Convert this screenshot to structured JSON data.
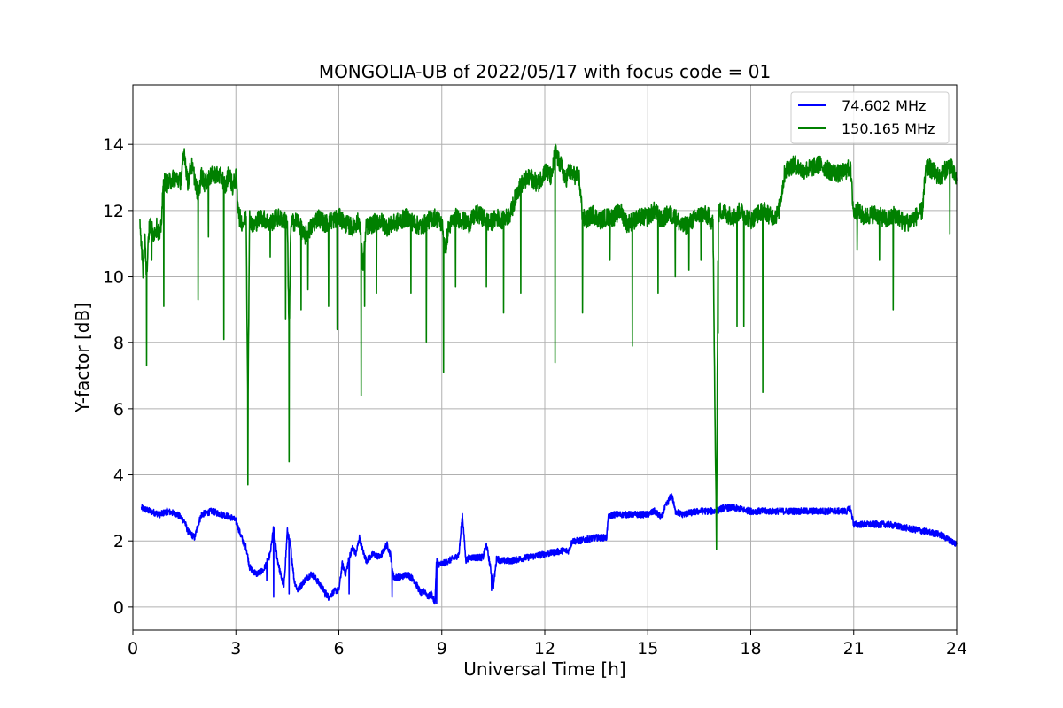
{
  "chart_data": {
    "type": "line",
    "title": "MONGOLIA-UB of 2022/05/17 with focus code = 01",
    "xlabel": "Universal Time [h]",
    "ylabel": "Y-factor [dB]",
    "xlim": [
      0,
      24
    ],
    "ylim": [
      -0.7,
      15.8
    ],
    "xticks": [
      0,
      3,
      6,
      9,
      12,
      15,
      18,
      21,
      24
    ],
    "yticks": [
      0,
      2,
      4,
      6,
      8,
      10,
      12,
      14
    ],
    "grid": true,
    "legend_position": "top-right",
    "series": [
      {
        "name": " 74.602 MHz",
        "color": "#0000ff",
        "x": [
          0.25,
          0.5,
          0.8,
          1.0,
          1.3,
          1.5,
          1.6,
          1.7,
          1.8,
          1.9,
          2.0,
          2.3,
          2.6,
          2.9,
          3.0,
          3.1,
          3.2,
          3.3,
          3.4,
          3.6,
          3.8,
          4.0,
          4.1,
          4.2,
          4.3,
          4.4,
          4.5,
          4.6,
          4.7,
          4.8,
          5.0,
          5.2,
          5.3,
          5.5,
          5.7,
          5.8,
          5.9,
          6.0,
          6.1,
          6.2,
          6.3,
          6.4,
          6.5,
          6.6,
          6.7,
          6.8,
          7.0,
          7.2,
          7.4,
          7.5,
          7.6,
          7.8,
          8.0,
          8.2,
          8.3,
          8.4,
          8.5,
          8.6,
          8.7,
          8.8,
          8.85,
          8.9,
          9.0,
          9.2,
          9.4,
          9.5,
          9.6,
          9.7,
          9.8,
          10.0,
          10.2,
          10.3,
          10.4,
          10.5,
          10.6,
          10.7,
          11.0,
          11.5,
          12.0,
          12.5,
          12.7,
          12.8,
          13.0,
          13.5,
          13.8,
          13.85,
          14.0,
          14.5,
          15.0,
          15.2,
          15.4,
          15.5,
          15.6,
          15.7,
          15.8,
          16.0,
          16.5,
          17.0,
          17.2,
          17.5,
          18.0,
          18.5,
          19.0,
          19.5,
          20.0,
          20.5,
          20.8,
          20.9,
          21.0,
          21.5,
          22.0,
          22.5,
          23.0,
          23.5,
          24.0
        ],
        "y": [
          3.0,
          2.9,
          2.8,
          2.9,
          2.8,
          2.6,
          2.3,
          2.2,
          2.1,
          2.5,
          2.8,
          2.9,
          2.8,
          2.7,
          2.6,
          2.3,
          2.0,
          1.8,
          1.2,
          1.0,
          1.1,
          1.6,
          2.4,
          1.5,
          1.0,
          0.6,
          2.3,
          1.8,
          0.8,
          0.5,
          0.8,
          1.0,
          0.9,
          0.6,
          0.3,
          0.4,
          0.5,
          0.5,
          1.3,
          1.0,
          1.5,
          1.8,
          1.6,
          2.1,
          1.7,
          1.4,
          1.6,
          1.5,
          1.9,
          1.6,
          0.9,
          0.9,
          1.0,
          0.8,
          0.6,
          0.4,
          0.5,
          0.3,
          0.4,
          0.1,
          1.5,
          1.3,
          1.3,
          1.4,
          1.5,
          1.6,
          2.8,
          1.4,
          1.5,
          1.5,
          1.5,
          1.9,
          1.3,
          0.6,
          1.5,
          1.4,
          1.4,
          1.5,
          1.6,
          1.7,
          1.7,
          2.0,
          2.0,
          2.1,
          2.1,
          2.7,
          2.8,
          2.8,
          2.8,
          2.9,
          2.7,
          3.0,
          3.2,
          3.4,
          2.9,
          2.8,
          2.9,
          2.9,
          3.0,
          3.0,
          2.9,
          2.9,
          2.9,
          2.9,
          2.9,
          2.9,
          2.9,
          3.0,
          2.5,
          2.5,
          2.5,
          2.4,
          2.3,
          2.2,
          1.9
        ]
      },
      {
        "name": "150.165 MHz",
        "color": "#008000",
        "x": [
          0.2,
          0.25,
          0.3,
          0.35,
          0.4,
          0.45,
          0.5,
          0.6,
          0.7,
          0.8,
          0.9,
          1.0,
          1.2,
          1.4,
          1.5,
          1.6,
          1.7,
          1.8,
          1.9,
          2.0,
          2.1,
          2.2,
          2.4,
          2.6,
          2.7,
          2.8,
          2.9,
          3.0,
          3.1,
          3.2,
          3.3,
          3.35,
          3.4,
          3.5,
          3.7,
          3.9,
          4.0,
          4.2,
          4.4,
          4.5,
          4.55,
          4.6,
          4.8,
          5.0,
          5.2,
          5.4,
          5.6,
          5.8,
          6.0,
          6.2,
          6.4,
          6.6,
          6.7,
          6.8,
          7.0,
          7.2,
          7.4,
          7.6,
          7.8,
          8.0,
          8.2,
          8.4,
          8.6,
          8.8,
          9.0,
          9.1,
          9.2,
          9.4,
          9.6,
          9.8,
          10.0,
          10.2,
          10.4,
          10.6,
          10.8,
          11.0,
          11.2,
          11.4,
          11.6,
          11.8,
          12.0,
          12.2,
          12.3,
          12.4,
          12.5,
          12.6,
          12.7,
          12.8,
          13.0,
          13.1,
          13.2,
          13.4,
          13.6,
          13.8,
          14.0,
          14.2,
          14.4,
          14.6,
          14.8,
          15.0,
          15.2,
          15.4,
          15.6,
          15.8,
          16.0,
          16.2,
          16.4,
          16.6,
          16.8,
          16.9,
          16.95,
          17.0,
          17.05,
          17.1,
          17.3,
          17.5,
          17.7,
          17.9,
          18.0,
          18.2,
          18.4,
          18.6,
          18.8,
          19.0,
          19.1,
          19.3,
          19.5,
          19.8,
          20.0,
          20.3,
          20.6,
          20.9,
          21.0,
          21.1,
          21.3,
          21.6,
          22.0,
          22.2,
          22.5,
          22.8,
          23.0,
          23.1,
          23.2,
          23.5,
          23.8,
          24.0
        ],
        "y": [
          11.8,
          11.0,
          10.0,
          11.5,
          9.9,
          11.2,
          11.6,
          11.3,
          11.5,
          11.2,
          12.9,
          12.8,
          13.0,
          12.9,
          13.8,
          12.8,
          13.4,
          13.0,
          12.4,
          13.1,
          12.8,
          13.0,
          13.1,
          13.0,
          12.7,
          13.2,
          12.7,
          13.0,
          11.8,
          11.6,
          11.8,
          6.0,
          11.8,
          11.5,
          11.8,
          11.7,
          11.6,
          11.8,
          11.7,
          11.7,
          8.0,
          11.6,
          11.7,
          11.2,
          11.5,
          11.8,
          11.6,
          11.7,
          11.8,
          11.6,
          11.5,
          11.7,
          10.3,
          11.5,
          11.6,
          11.7,
          11.5,
          11.6,
          11.7,
          11.8,
          11.6,
          11.5,
          11.7,
          11.8,
          11.6,
          10.8,
          11.5,
          11.8,
          11.7,
          11.6,
          11.9,
          11.8,
          11.6,
          11.8,
          11.7,
          11.9,
          12.6,
          12.9,
          13.0,
          12.8,
          13.2,
          13.0,
          13.8,
          13.5,
          13.3,
          12.9,
          13.2,
          13.1,
          13.0,
          11.8,
          11.7,
          11.9,
          11.7,
          11.8,
          11.8,
          12.0,
          11.6,
          11.7,
          11.8,
          11.8,
          12.0,
          11.7,
          11.9,
          11.8,
          11.5,
          11.6,
          11.8,
          11.9,
          11.8,
          11.6,
          6.5,
          2.0,
          11.8,
          12.0,
          11.9,
          11.8,
          12.0,
          11.8,
          11.7,
          11.9,
          12.0,
          11.8,
          11.9,
          13.2,
          13.3,
          13.4,
          13.2,
          13.3,
          13.4,
          13.2,
          13.1,
          13.3,
          11.9,
          12.0,
          11.8,
          11.9,
          11.7,
          11.9,
          11.6,
          11.8,
          12.0,
          13.2,
          13.3,
          13.0,
          13.4,
          12.9
        ]
      }
    ],
    "noise": {
      "series0_amp": 0.1,
      "series1_amp": 0.28,
      "series0_spikes": [
        [
          3.9,
          0.8
        ],
        [
          4.1,
          0.3
        ],
        [
          4.55,
          0.4
        ],
        [
          5.6,
          0.3
        ],
        [
          6.3,
          0.4
        ],
        [
          7.55,
          0.3
        ],
        [
          9.55,
          2.2
        ],
        [
          9.05,
          1.3
        ],
        [
          10.45,
          0.5
        ],
        [
          8.85,
          0.1
        ]
      ],
      "series1_spikes": [
        [
          0.4,
          7.3
        ],
        [
          0.55,
          10.5
        ],
        [
          0.9,
          9.1
        ],
        [
          1.9,
          9.3
        ],
        [
          2.2,
          11.2
        ],
        [
          2.65,
          8.1
        ],
        [
          3.35,
          3.7
        ],
        [
          4.0,
          10.6
        ],
        [
          4.45,
          8.7
        ],
        [
          4.55,
          4.4
        ],
        [
          4.9,
          9.0
        ],
        [
          5.1,
          9.6
        ],
        [
          5.7,
          9.1
        ],
        [
          5.95,
          8.4
        ],
        [
          6.65,
          6.4
        ],
        [
          6.75,
          9.1
        ],
        [
          7.1,
          9.5
        ],
        [
          8.1,
          9.5
        ],
        [
          8.55,
          8.0
        ],
        [
          9.05,
          7.1
        ],
        [
          9.4,
          9.7
        ],
        [
          10.3,
          9.7
        ],
        [
          10.8,
          8.9
        ],
        [
          11.3,
          9.5
        ],
        [
          12.3,
          7.4
        ],
        [
          13.1,
          8.9
        ],
        [
          13.9,
          10.5
        ],
        [
          14.55,
          7.9
        ],
        [
          15.3,
          9.5
        ],
        [
          15.8,
          10.0
        ],
        [
          16.2,
          10.2
        ],
        [
          16.55,
          10.5
        ],
        [
          17.05,
          8.3
        ],
        [
          17.6,
          8.5
        ],
        [
          17.8,
          8.5
        ],
        [
          18.35,
          6.5
        ],
        [
          21.1,
          10.8
        ],
        [
          21.75,
          10.5
        ],
        [
          22.15,
          9.0
        ],
        [
          23.8,
          11.3
        ]
      ]
    }
  }
}
